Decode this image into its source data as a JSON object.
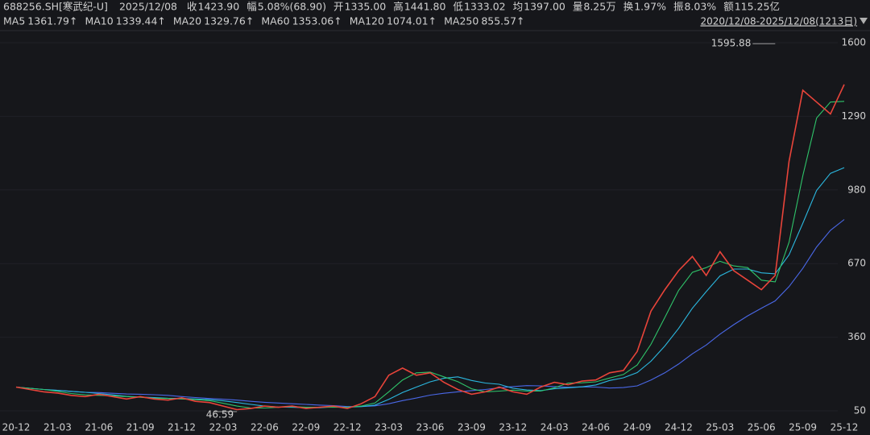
{
  "chart_data": {
    "type": "line",
    "ticker": "688256.SH[寒武纪-U]",
    "date": "2025/12/08",
    "quote": [
      {
        "label": "收",
        "value": "1423.90",
        "color": "#ff4a4a"
      },
      {
        "label": "幅",
        "value": "5.08%(68.90)",
        "color": "#ff4a4a"
      },
      {
        "label": "开",
        "value": "1335.00",
        "color": "#2fc46a"
      },
      {
        "label": "高",
        "value": "1441.80",
        "color": "#ff4a4a"
      },
      {
        "label": "低",
        "value": "1333.02",
        "color": "#2fc46a"
      },
      {
        "label": "均",
        "value": "1397.00",
        "color": "#ff4a4a"
      },
      {
        "label": "量",
        "value": "8.25万",
        "color": "#d8d8d8"
      },
      {
        "label": "换",
        "value": "1.97%",
        "color": "#d8d8d8"
      },
      {
        "label": "振",
        "value": "8.03%",
        "color": "#d8d8d8"
      },
      {
        "label": "额",
        "value": "115.25亿",
        "color": "#d8d8d8"
      }
    ],
    "indicators": [
      {
        "name": "MA5",
        "value": "1361.79↑",
        "color": "#f39a2c"
      },
      {
        "name": "MA10",
        "value": "1339.44↑",
        "color": "#e8d22a"
      },
      {
        "name": "MA20",
        "value": "1329.76↑",
        "color": "#d84ad8"
      },
      {
        "name": "MA60",
        "value": "1353.06↑",
        "color": "#2fc46a"
      },
      {
        "name": "MA120",
        "value": "1074.01↑",
        "color": "#2bb8e0"
      },
      {
        "name": "MA250",
        "value": "855.57↑",
        "color": "#4a68e8"
      }
    ],
    "range_label": "2020/12/08-2025/12/08(1213日)",
    "categories": [
      "20-12",
      null,
      null,
      "21-03",
      null,
      null,
      "21-06",
      null,
      null,
      "21-09",
      null,
      null,
      "21-12",
      null,
      null,
      "22-03",
      null,
      null,
      "22-06",
      null,
      null,
      "22-09",
      null,
      null,
      "22-12",
      null,
      null,
      "23-03",
      null,
      null,
      "23-06",
      null,
      null,
      "23-09",
      null,
      null,
      "23-12",
      null,
      null,
      "24-03",
      null,
      null,
      "24-06",
      null,
      null,
      "24-09",
      null,
      null,
      "24-12",
      null,
      null,
      "25-03",
      null,
      null,
      "25-06",
      null,
      null,
      "25-09",
      null,
      null,
      "25-12"
    ],
    "series": [
      {
        "name": "收",
        "color": "#e8443a",
        "values": [
          150,
          140,
          130,
          125,
          115,
          110,
          120,
          110,
          100,
          110,
          100,
          95,
          105,
          90,
          85,
          70,
          55,
          60,
          70,
          65,
          70,
          60,
          65,
          70,
          60,
          80,
          110,
          200,
          230,
          200,
          210,
          170,
          140,
          120,
          130,
          150,
          130,
          120,
          150,
          170,
          160,
          175,
          180,
          210,
          220,
          300,
          470,
          560,
          640,
          700,
          620,
          720,
          640,
          600,
          560,
          620,
          1100,
          1400,
          1350,
          1300,
          1423.9
        ]
      },
      {
        "name": "MA60",
        "color": "#2fc46a",
        "values": [
          150,
          145,
          140,
          132,
          123,
          117,
          115,
          113,
          110,
          107,
          103,
          102,
          100,
          97,
          93,
          82,
          70,
          62,
          62,
          65,
          68,
          65,
          65,
          65,
          65,
          70,
          83,
          130,
          180,
          210,
          213,
          193,
          173,
          143,
          130,
          133,
          137,
          133,
          133,
          147,
          167,
          168,
          172,
          188,
          203,
          243,
          330,
          443,
          557,
          633,
          653,
          680,
          660,
          653,
          600,
          593,
          760,
          1040,
          1283,
          1350,
          1353.06
        ]
      },
      {
        "name": "MA120",
        "color": "#2bb8e0",
        "values": [
          150,
          145,
          140,
          136,
          132,
          128,
          123,
          117,
          111,
          108,
          106,
          103,
          102,
          100,
          97,
          92,
          85,
          77,
          70,
          66,
          65,
          63,
          63,
          67,
          65,
          68,
          74,
          98,
          127,
          150,
          172,
          187,
          193,
          178,
          167,
          162,
          145,
          138,
          135,
          143,
          147,
          151,
          159,
          178,
          189,
          211,
          259,
          323,
          397,
          482,
          552,
          618,
          647,
          647,
          631,
          627,
          707,
          840,
          978,
          1050,
          1074.01
        ]
      },
      {
        "name": "MA250",
        "color": "#4a68e8",
        "values": [
          150,
          145,
          140,
          136,
          132,
          128,
          127,
          124,
          121,
          120,
          118,
          115,
          110,
          106,
          102,
          99,
          95,
          90,
          86,
          83,
          80,
          77,
          74,
          72,
          68,
          68,
          71,
          80,
          93,
          104,
          116,
          124,
          130,
          135,
          140,
          147,
          152,
          156,
          155,
          152,
          149,
          151,
          150,
          146,
          148,
          155,
          180,
          210,
          247,
          290,
          327,
          373,
          413,
          450,
          482,
          513,
          573,
          650,
          740,
          810,
          855.57
        ]
      }
    ],
    "annotations": [
      {
        "text": "1595.88",
        "value": 1595.88,
        "date": "25-07",
        "color": "#ff4a4a"
      },
      {
        "text": "46.59",
        "value": 46.59,
        "date": "22-04",
        "color": "#2fc46a"
      }
    ],
    "ylim": [
      50,
      1600
    ],
    "yticks": [
      50,
      360,
      670,
      980,
      1290,
      1600
    ],
    "grid": true
  }
}
